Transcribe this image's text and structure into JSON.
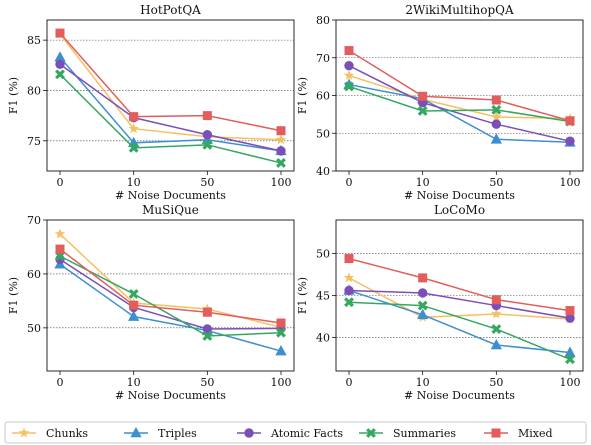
{
  "chart_data": [
    {
      "type": "line",
      "title": "HotPotQA",
      "xlabel": "# Noise Documents",
      "ylabel": "F1 (%)",
      "x": [
        "0",
        "10",
        "50",
        "100"
      ],
      "ylim": [
        72,
        87
      ],
      "yticks": [
        75,
        80,
        85
      ],
      "grid": "horizontal dotted",
      "series": [
        {
          "name": "Chunks",
          "values": [
            85.6,
            76.2,
            75.4,
            75.1
          ]
        },
        {
          "name": "Triples",
          "values": [
            83.3,
            74.8,
            75.1,
            74.0
          ]
        },
        {
          "name": "Atomic Facts",
          "values": [
            82.6,
            77.3,
            75.6,
            74.0
          ]
        },
        {
          "name": "Summaries",
          "values": [
            81.6,
            74.3,
            74.6,
            72.8
          ]
        },
        {
          "name": "Mixed",
          "values": [
            85.7,
            77.4,
            77.5,
            76.0
          ]
        }
      ]
    },
    {
      "type": "line",
      "title": "2WikiMultihopQA",
      "xlabel": "# Noise Documents",
      "ylabel": "F1 (%)",
      "x": [
        "0",
        "10",
        "50",
        "100"
      ],
      "ylim": [
        40,
        80
      ],
      "yticks": [
        40,
        50,
        60,
        70,
        80
      ],
      "grid": "horizontal dotted",
      "series": [
        {
          "name": "Chunks",
          "values": [
            65.3,
            59.0,
            54.3,
            53.9
          ]
        },
        {
          "name": "Triples",
          "values": [
            62.9,
            59.1,
            48.4,
            47.6
          ]
        },
        {
          "name": "Atomic Facts",
          "values": [
            67.9,
            58.1,
            52.4,
            47.9
          ]
        },
        {
          "name": "Summaries",
          "values": [
            62.4,
            55.9,
            56.2,
            53.1
          ]
        },
        {
          "name": "Mixed",
          "values": [
            71.9,
            59.8,
            58.8,
            53.3
          ]
        }
      ]
    },
    {
      "type": "line",
      "title": "MuSiQue",
      "xlabel": "# Noise Documents",
      "ylabel": "F1 (%)",
      "x": [
        "0",
        "10",
        "50",
        "100"
      ],
      "ylim": [
        42,
        70
      ],
      "yticks": [
        50,
        60,
        70
      ],
      "grid": "horizontal dotted",
      "series": [
        {
          "name": "Chunks",
          "values": [
            67.4,
            54.6,
            53.5,
            50.1
          ]
        },
        {
          "name": "Triples",
          "values": [
            61.8,
            52.1,
            49.5,
            45.7
          ]
        },
        {
          "name": "Atomic Facts",
          "values": [
            62.7,
            53.8,
            49.8,
            49.9
          ]
        },
        {
          "name": "Summaries",
          "values": [
            63.3,
            56.3,
            48.5,
            49.1
          ]
        },
        {
          "name": "Mixed",
          "values": [
            64.6,
            54.2,
            52.9,
            50.9
          ]
        }
      ]
    },
    {
      "type": "line",
      "title": "LoCoMo",
      "xlabel": "# Noise Documents",
      "ylabel": "F1 (%)",
      "x": [
        "0",
        "10",
        "50",
        "100"
      ],
      "ylim": [
        36,
        54
      ],
      "yticks": [
        40,
        45,
        50
      ],
      "grid": "horizontal dotted",
      "series": [
        {
          "name": "Chunks",
          "values": [
            47.1,
            42.4,
            42.8,
            42.2
          ]
        },
        {
          "name": "Triples",
          "values": [
            45.6,
            42.7,
            39.1,
            38.2
          ]
        },
        {
          "name": "Atomic Facts",
          "values": [
            45.6,
            45.3,
            43.8,
            42.3
          ]
        },
        {
          "name": "Summaries",
          "values": [
            44.2,
            43.8,
            41.0,
            37.4
          ]
        },
        {
          "name": "Mixed",
          "values": [
            49.4,
            47.1,
            44.5,
            43.2
          ]
        }
      ]
    }
  ],
  "legend": {
    "placement": "bottom",
    "entries": [
      {
        "name": "Chunks",
        "color": "#f5c060",
        "marker": "star"
      },
      {
        "name": "Triples",
        "color": "#3f8fd0",
        "marker": "triangle"
      },
      {
        "name": "Atomic Facts",
        "color": "#7a4fb8",
        "marker": "circle"
      },
      {
        "name": "Summaries",
        "color": "#35a860",
        "marker": "x"
      },
      {
        "name": "Mixed",
        "color": "#e35d5d",
        "marker": "square"
      }
    ]
  }
}
